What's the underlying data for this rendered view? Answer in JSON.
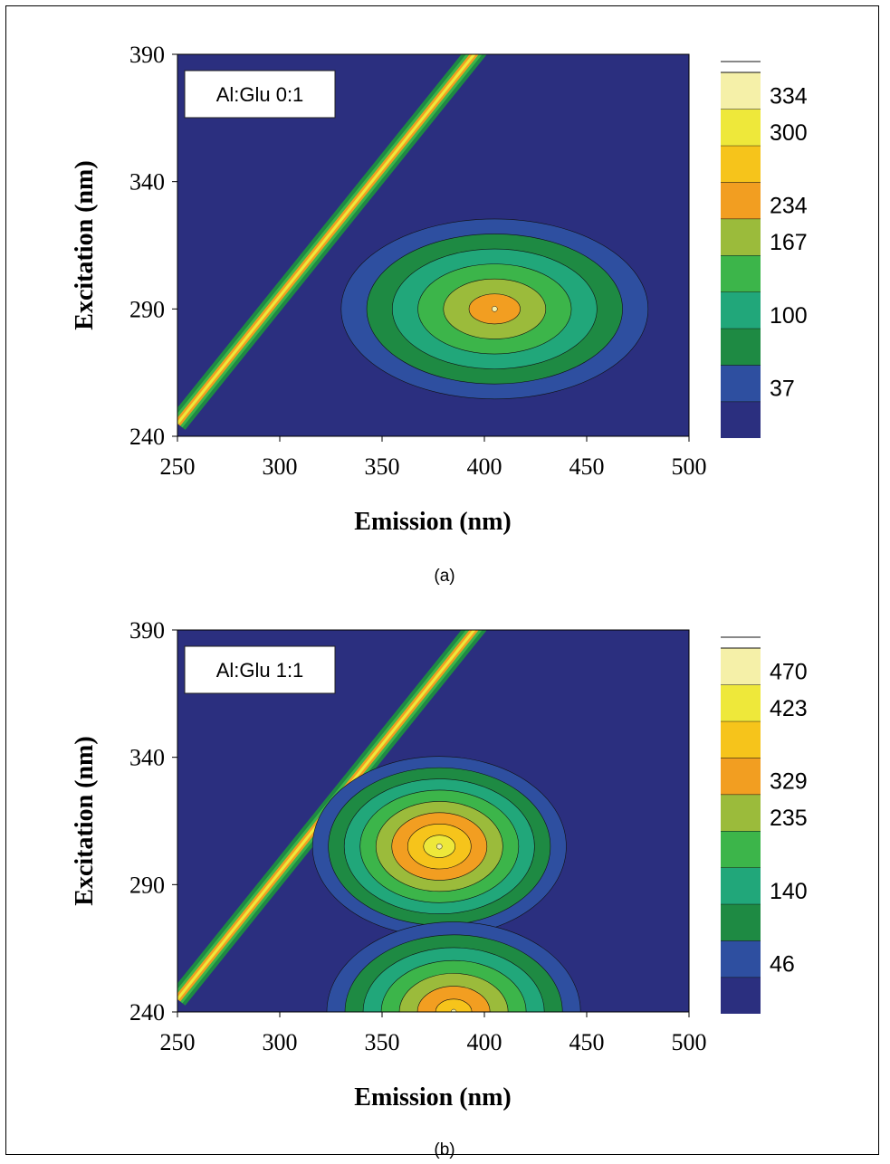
{
  "chart_data": [
    {
      "type": "heatmap",
      "panel_label": "(a)",
      "inset_label": "Al:Glu 0:1",
      "xlabel": "Emission (nm)",
      "ylabel": "Excitation (nm)",
      "xlim": [
        250,
        500
      ],
      "ylim": [
        240,
        390
      ],
      "xticks": [
        "250",
        "300",
        "350",
        "400",
        "450",
        "500"
      ],
      "yticks": [
        "240",
        "290",
        "340",
        "390"
      ],
      "colorbar_labels": [
        "37",
        "100",
        "167",
        "234",
        "300",
        "334"
      ],
      "peaks": [
        {
          "emission": 405,
          "excitation": 290,
          "intensity": 217
        }
      ],
      "scatter_band": {
        "start": [
          250,
          245
        ],
        "end": [
          400,
          395
        ]
      },
      "colors": [
        "#2b2f7f",
        "#2e4fa0",
        "#1e8a43",
        "#21a77a",
        "#3cb54a",
        "#9bbb3b",
        "#f29e21",
        "#f6c41b",
        "#eee83a",
        "#f5f0a8"
      ]
    },
    {
      "type": "heatmap",
      "panel_label": "(b)",
      "inset_label": "Al:Glu 1:1",
      "xlabel": "Emission (nm)",
      "ylabel": "Excitation (nm)",
      "xlim": [
        250,
        500
      ],
      "ylim": [
        240,
        390
      ],
      "xticks": [
        "250",
        "300",
        "350",
        "400",
        "450",
        "500"
      ],
      "yticks": [
        "240",
        "290",
        "340",
        "390"
      ],
      "colorbar_labels": [
        "46",
        "140",
        "235",
        "329",
        "423",
        "470"
      ],
      "peaks": [
        {
          "emission": 378,
          "excitation": 305,
          "intensity": 400
        },
        {
          "emission": 385,
          "excitation": 240,
          "intensity": 360
        }
      ],
      "scatter_band": {
        "start": [
          250,
          245
        ],
        "end": [
          400,
          395
        ]
      },
      "colors": [
        "#2b2f7f",
        "#2e4fa0",
        "#1e8a43",
        "#21a77a",
        "#3cb54a",
        "#9bbb3b",
        "#f29e21",
        "#f6c41b",
        "#eee83a",
        "#f5f0a8"
      ]
    }
  ]
}
